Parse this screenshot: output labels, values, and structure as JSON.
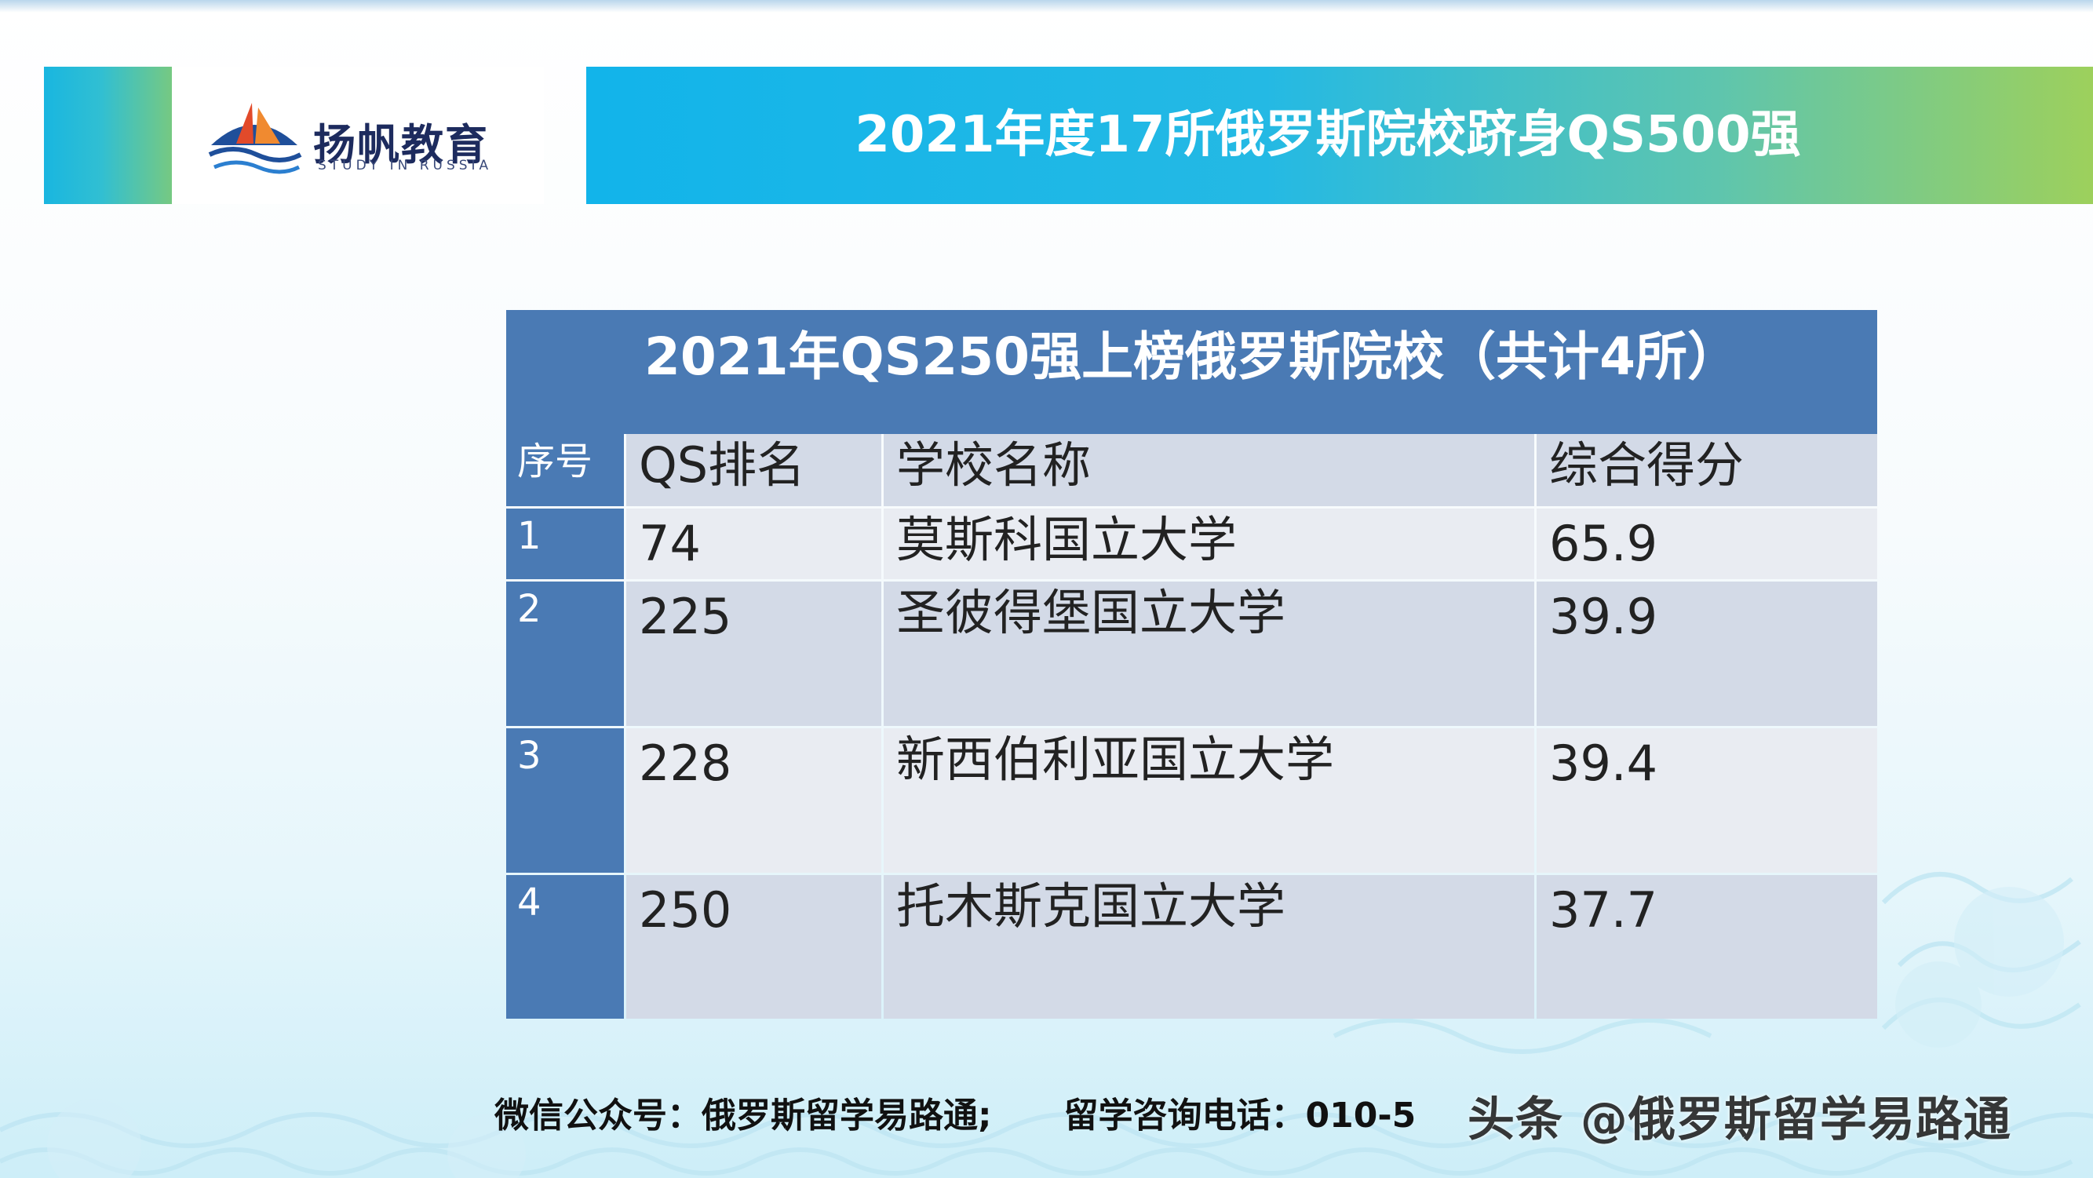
{
  "logo": {
    "name_cn": "扬帆教育",
    "name_en": "STUDY IN RUSSIA"
  },
  "banner": {
    "title": "2021年度17所俄罗斯院校跻身QS500强"
  },
  "table": {
    "title": "2021年QS250强上榜俄罗斯院校（共计4所）",
    "columns": [
      "序号",
      "QS排名",
      "学校名称",
      "综合得分"
    ],
    "rows": [
      {
        "index": "1",
        "qs_rank": "74",
        "school": "莫斯科国立大学",
        "score": "65.9"
      },
      {
        "index": "2",
        "qs_rank": "225",
        "school": "圣彼得堡国立大学",
        "score": "39.9"
      },
      {
        "index": "3",
        "qs_rank": "228",
        "school": "新西伯利亚国立大学",
        "score": "39.4"
      },
      {
        "index": "4",
        "qs_rank": "250",
        "school": "托木斯克国立大学",
        "score": "37.7"
      }
    ]
  },
  "footer": {
    "text": "微信公众号：俄罗斯留学易路通;      留学咨询电话：010-5"
  },
  "watermark": {
    "text": "头条 @俄罗斯留学易路通"
  },
  "colors": {
    "banner_start": "#12b4ea",
    "banner_end": "#9dd05c",
    "table_header": "#4a7ab4",
    "row_even": "#d3dae7",
    "row_odd": "#e9ecf2"
  }
}
